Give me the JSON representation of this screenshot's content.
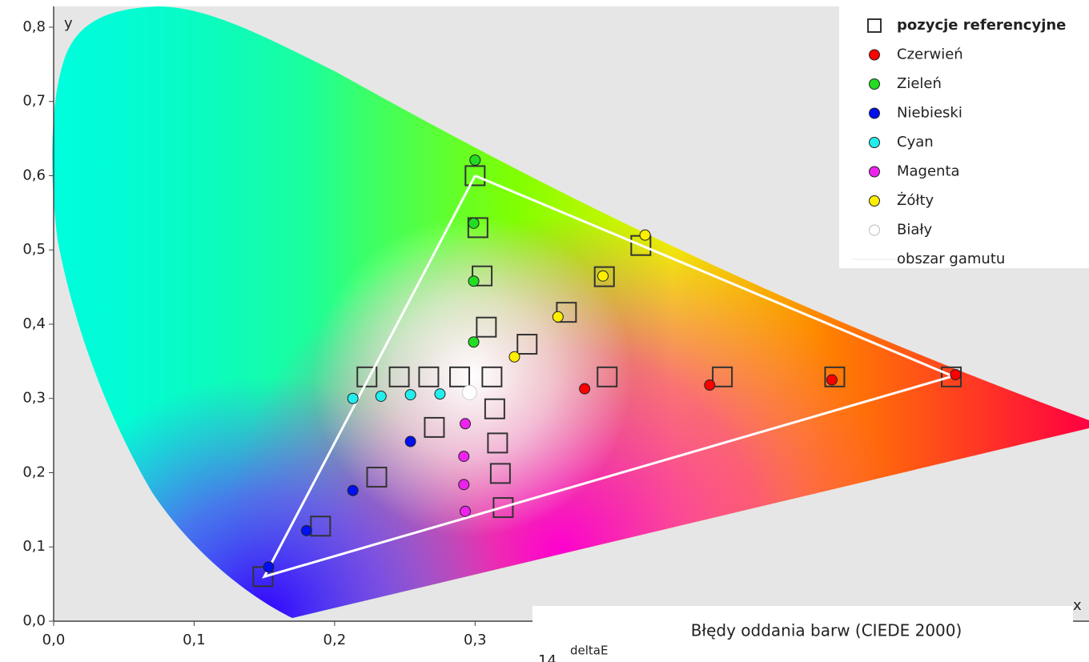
{
  "chart_data": {
    "type": "scatter",
    "x_label": "x",
    "y_label": "y",
    "xlim": [
      0,
      0.737
    ],
    "ylim": [
      0,
      0.828
    ],
    "xticks": [
      {
        "value": 0,
        "label": "0,0"
      },
      {
        "value": 0.1,
        "label": "0,1"
      },
      {
        "value": 0.2,
        "label": "0,2"
      },
      {
        "value": 0.3,
        "label": "0,3"
      }
    ],
    "yticks": [
      {
        "value": 0,
        "label": "0,0"
      },
      {
        "value": 0.1,
        "label": "0,1"
      },
      {
        "value": 0.2,
        "label": "0,2"
      },
      {
        "value": 0.3,
        "label": "0,3"
      },
      {
        "value": 0.4,
        "label": "0,4"
      },
      {
        "value": 0.5,
        "label": "0,5"
      },
      {
        "value": 0.6,
        "label": "0,6"
      },
      {
        "value": 0.7,
        "label": "0,7"
      },
      {
        "value": 0.8,
        "label": "0,8"
      }
    ],
    "legend": "top-right",
    "series": [
      {
        "name": "pozycje referencyjne",
        "marker": "square",
        "color": "#333333",
        "x": [
          0.3,
          0.302,
          0.305,
          0.308,
          0.337,
          0.365,
          0.392,
          0.418,
          0.149,
          0.19,
          0.23,
          0.271,
          0.223,
          0.246,
          0.267,
          0.289,
          0.312,
          0.314,
          0.316,
          0.318,
          0.32,
          0.394,
          0.476,
          0.556,
          0.639
        ],
        "y": [
          0.6,
          0.53,
          0.465,
          0.396,
          0.373,
          0.416,
          0.464,
          0.506,
          0.06,
          0.128,
          0.194,
          0.261,
          0.329,
          0.329,
          0.329,
          0.329,
          0.329,
          0.286,
          0.24,
          0.199,
          0.153,
          0.329,
          0.329,
          0.329,
          0.329
        ]
      },
      {
        "name": "Czerwień",
        "marker": "circle",
        "color": "#ff0000",
        "x": [
          0.378,
          0.467,
          0.554,
          0.642
        ],
        "y": [
          0.313,
          0.318,
          0.325,
          0.332
        ]
      },
      {
        "name": "Zieleń",
        "marker": "circle",
        "color": "#22dd22",
        "x": [
          0.3,
          0.299,
          0.299,
          0.299
        ],
        "y": [
          0.621,
          0.536,
          0.458,
          0.376
        ]
      },
      {
        "name": "Niebieski",
        "marker": "circle",
        "color": "#0010ee",
        "x": [
          0.153,
          0.18,
          0.213,
          0.254
        ],
        "y": [
          0.073,
          0.122,
          0.176,
          0.242
        ]
      },
      {
        "name": "Cyan",
        "marker": "circle",
        "color": "#22eeee",
        "x": [
          0.213,
          0.233,
          0.254,
          0.275
        ],
        "y": [
          0.3,
          0.303,
          0.305,
          0.306
        ]
      },
      {
        "name": "Magenta",
        "marker": "circle",
        "color": "#ee22ee",
        "x": [
          0.293,
          0.292,
          0.292,
          0.293
        ],
        "y": [
          0.266,
          0.222,
          0.184,
          0.148
        ]
      },
      {
        "name": "Żółty",
        "marker": "circle",
        "color": "#ffee00",
        "x": [
          0.328,
          0.359,
          0.391,
          0.421
        ],
        "y": [
          0.356,
          0.41,
          0.465,
          0.52
        ]
      },
      {
        "name": "Biały",
        "marker": "circle",
        "color": "#ffffff",
        "x": [
          0.296
        ],
        "y": [
          0.308
        ]
      },
      {
        "name": "obszar gamutu",
        "marker": "line",
        "color": "#ffffff",
        "x": [
          0.3,
          0.64,
          0.15,
          0.3
        ],
        "y": [
          0.6,
          0.33,
          0.06,
          0.6
        ]
      }
    ],
    "inset": {
      "title": "Błędy oddania barw (CIEDE 2000)",
      "y_label": "deltaE",
      "tick": "14"
    }
  }
}
